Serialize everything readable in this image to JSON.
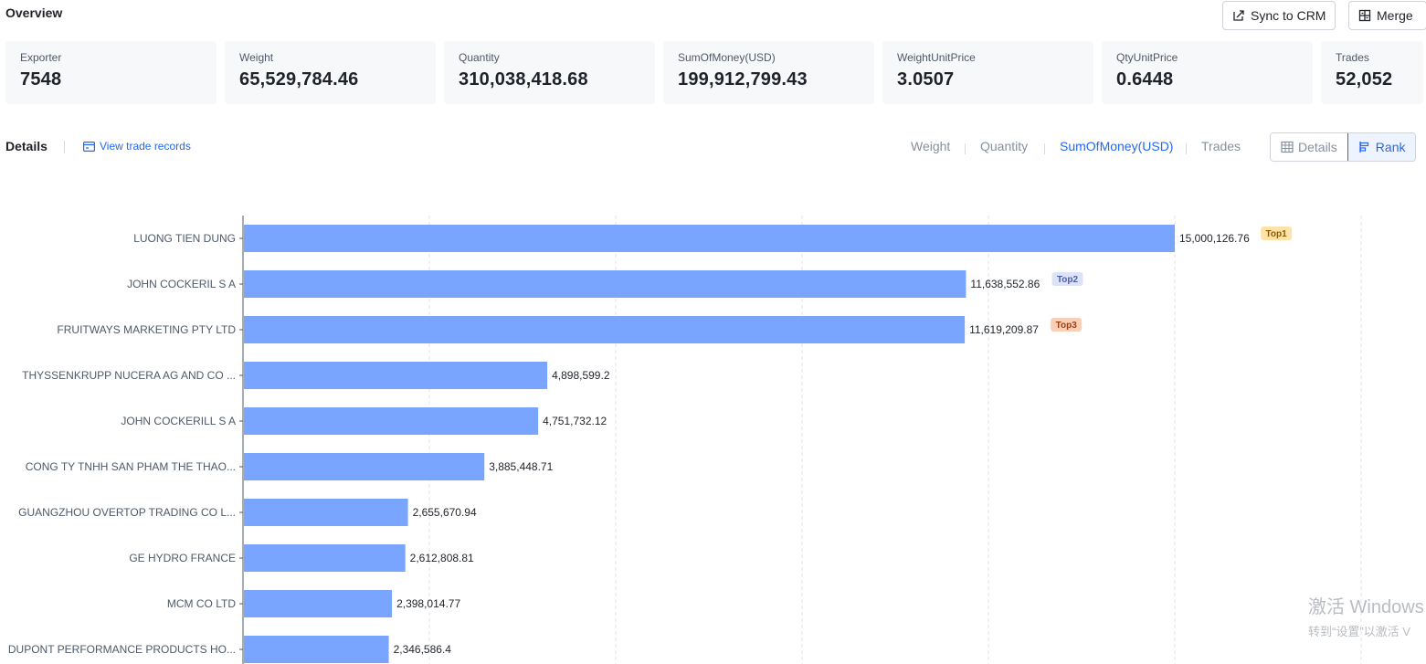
{
  "header": {
    "title": "Overview",
    "sync_label": "Sync to CRM",
    "merge_label": "Merge"
  },
  "stats": [
    {
      "label": "Exporter",
      "value": "7548"
    },
    {
      "label": "Weight",
      "value": "65,529,784.46"
    },
    {
      "label": "Quantity",
      "value": "310,038,418.68"
    },
    {
      "label": "SumOfMoney(USD)",
      "value": "199,912,799.43"
    },
    {
      "label": "WeightUnitPrice",
      "value": "3.0507"
    },
    {
      "label": "QtyUnitPrice",
      "value": "0.6448"
    },
    {
      "label": "Trades",
      "value": "52,052"
    }
  ],
  "details": {
    "title": "Details",
    "view_link": "View trade records",
    "metric_tabs": [
      "Weight",
      "Quantity",
      "SumOfMoney(USD)",
      "Trades"
    ],
    "active_metric": "SumOfMoney(USD)",
    "view_details_label": "Details",
    "view_rank_label": "Rank"
  },
  "chart_data": {
    "type": "bar",
    "orientation": "horizontal",
    "categories": [
      "LUONG TIEN DUNG",
      "JOHN COCKERIL S A",
      "FRUITWAYS MARKETING PTY LTD",
      "THYSSENKRUPP NUCERA AG AND CO ...",
      "JOHN COCKERILL S A",
      "CONG TY TNHH SAN PHAM THE THAO...",
      "GUANGZHOU OVERTOP TRADING CO L...",
      "GE HYDRO FRANCE",
      "MCM CO LTD",
      "DUPONT PERFORMANCE PRODUCTS HO..."
    ],
    "values": [
      15000126.76,
      11638552.86,
      11619209.87,
      4898599.2,
      4751732.12,
      3885448.71,
      2655670.94,
      2612808.81,
      2398014.77,
      2346586.4
    ],
    "value_labels": [
      "15,000,126.76",
      "11,638,552.86",
      "11,619,209.87",
      "4,898,599.2",
      "4,751,732.12",
      "3,885,448.71",
      "2,655,670.94",
      "2,612,808.81",
      "2,398,014.77",
      "2,346,586.4"
    ],
    "badges": [
      "Top1",
      "Top2",
      "Top3"
    ],
    "xlim": [
      0,
      18000000
    ],
    "grid": true,
    "bar_color": "#79a5ff"
  },
  "watermark": {
    "line1": "激活 Windows",
    "line2": "转到“设置”以激活 V"
  }
}
